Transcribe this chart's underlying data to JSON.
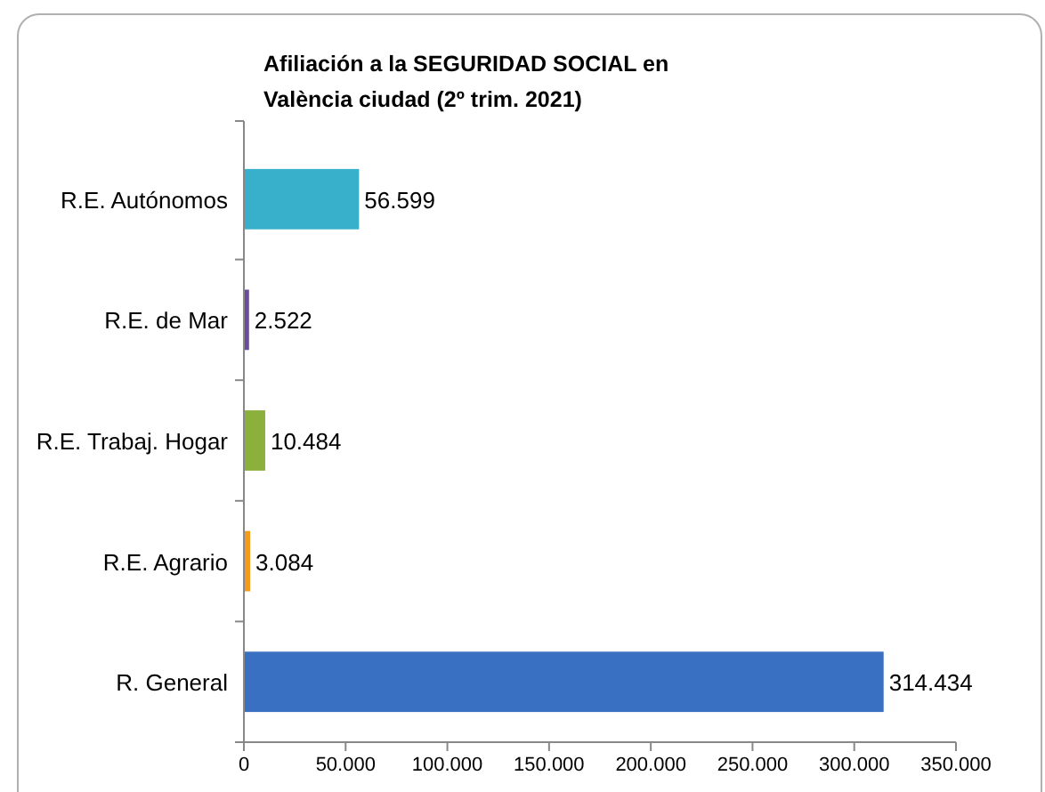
{
  "chart_data": {
    "type": "bar",
    "orientation": "horizontal",
    "title": "Afiliación a la SEGURIDAD SOCIAL en València ciudad (2º trim. 2021)",
    "categories": [
      "R.E. Autónomos",
      "R.E. de Mar",
      "R.E. Trabaj. Hogar",
      "R.E. Agrario",
      "R. General"
    ],
    "values": [
      56599,
      2522,
      10484,
      3084,
      314434
    ],
    "colors": [
      "#38b0cc",
      "#6b4c9e",
      "#8bb03c",
      "#f39a1d",
      "#3a70c2"
    ],
    "value_labels": [
      "56.599",
      "2.522",
      "10.484",
      "3.084",
      "314.434"
    ],
    "xlim": [
      0,
      350000
    ],
    "xticks": [
      0,
      {
        "value": 50000,
        "label": "50.000"
      },
      {
        "value": 100000,
        "label": "100.000"
      },
      {
        "value": 150000,
        "label": "150.000"
      },
      {
        "value": 200000,
        "label": "200.000"
      },
      {
        "value": 250000,
        "label": "250.000"
      },
      {
        "value": 300000,
        "label": "300.000"
      },
      {
        "value": 350000,
        "label": "350.000"
      }
    ],
    "grid": false
  }
}
